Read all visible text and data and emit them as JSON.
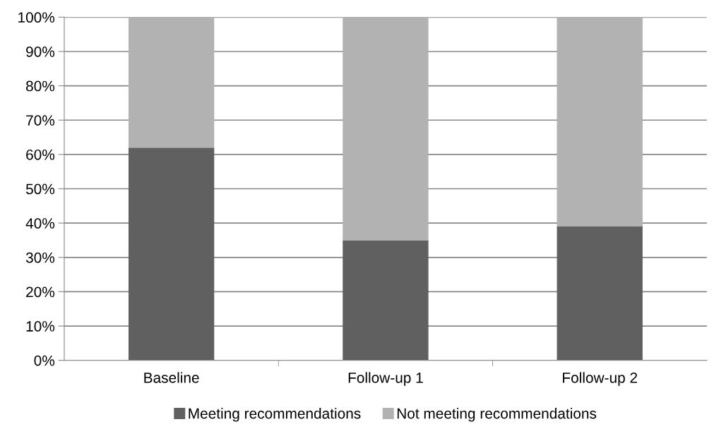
{
  "chart_data": {
    "type": "bar",
    "stacked": true,
    "categories": [
      "Baseline",
      "Follow-up 1",
      "Follow-up 2"
    ],
    "series": [
      {
        "name": "Meeting recommendations",
        "color": "#606060",
        "values": [
          62,
          35,
          39
        ]
      },
      {
        "name": "Not meeting recommendations",
        "color": "#b2b2b2",
        "values": [
          38,
          65,
          61
        ]
      }
    ],
    "ylim": [
      0,
      100
    ],
    "yticks": [
      {
        "value": 0,
        "label": "0%"
      },
      {
        "value": 10,
        "label": "10%"
      },
      {
        "value": 20,
        "label": "20%"
      },
      {
        "value": 30,
        "label": "30%"
      },
      {
        "value": 40,
        "label": "40%"
      },
      {
        "value": 50,
        "label": "50%"
      },
      {
        "value": 60,
        "label": "60%"
      },
      {
        "value": 70,
        "label": "70%"
      },
      {
        "value": 80,
        "label": "80%"
      },
      {
        "value": 90,
        "label": "90%"
      },
      {
        "value": 100,
        "label": "100%"
      }
    ],
    "grid": "y",
    "legend": "bottom"
  }
}
